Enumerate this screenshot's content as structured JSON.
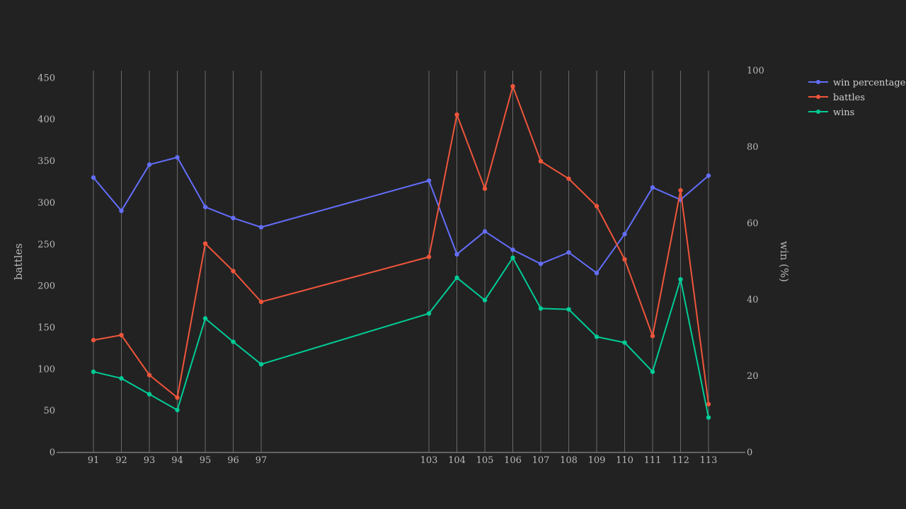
{
  "chart_data": {
    "type": "line",
    "x": [
      91,
      92,
      93,
      94,
      95,
      96,
      97,
      103,
      104,
      105,
      106,
      107,
      108,
      109,
      110,
      111,
      112,
      113
    ],
    "xtick_labels": [
      "91",
      "92",
      "93",
      "94",
      "95",
      "96",
      "97",
      "103",
      "104",
      "105",
      "106",
      "107",
      "108",
      "109",
      "110",
      "111",
      "112",
      "113"
    ],
    "y_left": {
      "label": "battles",
      "range": [
        0,
        460
      ],
      "ticks": [
        0,
        50,
        100,
        150,
        200,
        250,
        300,
        350,
        400,
        450
      ]
    },
    "y_right": {
      "label": "win (%)",
      "range": [
        0,
        100
      ],
      "ticks": [
        0,
        20,
        40,
        60,
        80,
        100
      ]
    },
    "vertical_grid": true,
    "legend_position": "top-right",
    "series": [
      {
        "name": "win percentage",
        "axis": "right",
        "color": "#636efa",
        "values": [
          72.0,
          63.3,
          75.4,
          77.3,
          64.3,
          61.4,
          59.0,
          71.2,
          51.9,
          57.9,
          53.1,
          49.4,
          52.4,
          47.0,
          57.2,
          69.4,
          66.2,
          72.5
        ]
      },
      {
        "name": "battles",
        "axis": "left",
        "color": "#ef553b",
        "values": [
          135,
          141,
          93,
          66,
          251,
          218,
          181,
          235,
          406,
          317,
          440,
          350,
          329,
          296,
          232,
          140,
          315,
          58
        ]
      },
      {
        "name": "wins",
        "axis": "left",
        "color": "#00cc96",
        "values": [
          97,
          89,
          70,
          51,
          161,
          133,
          106,
          167,
          210,
          183,
          234,
          173,
          172,
          139,
          132,
          97,
          208,
          42
        ]
      }
    ]
  }
}
